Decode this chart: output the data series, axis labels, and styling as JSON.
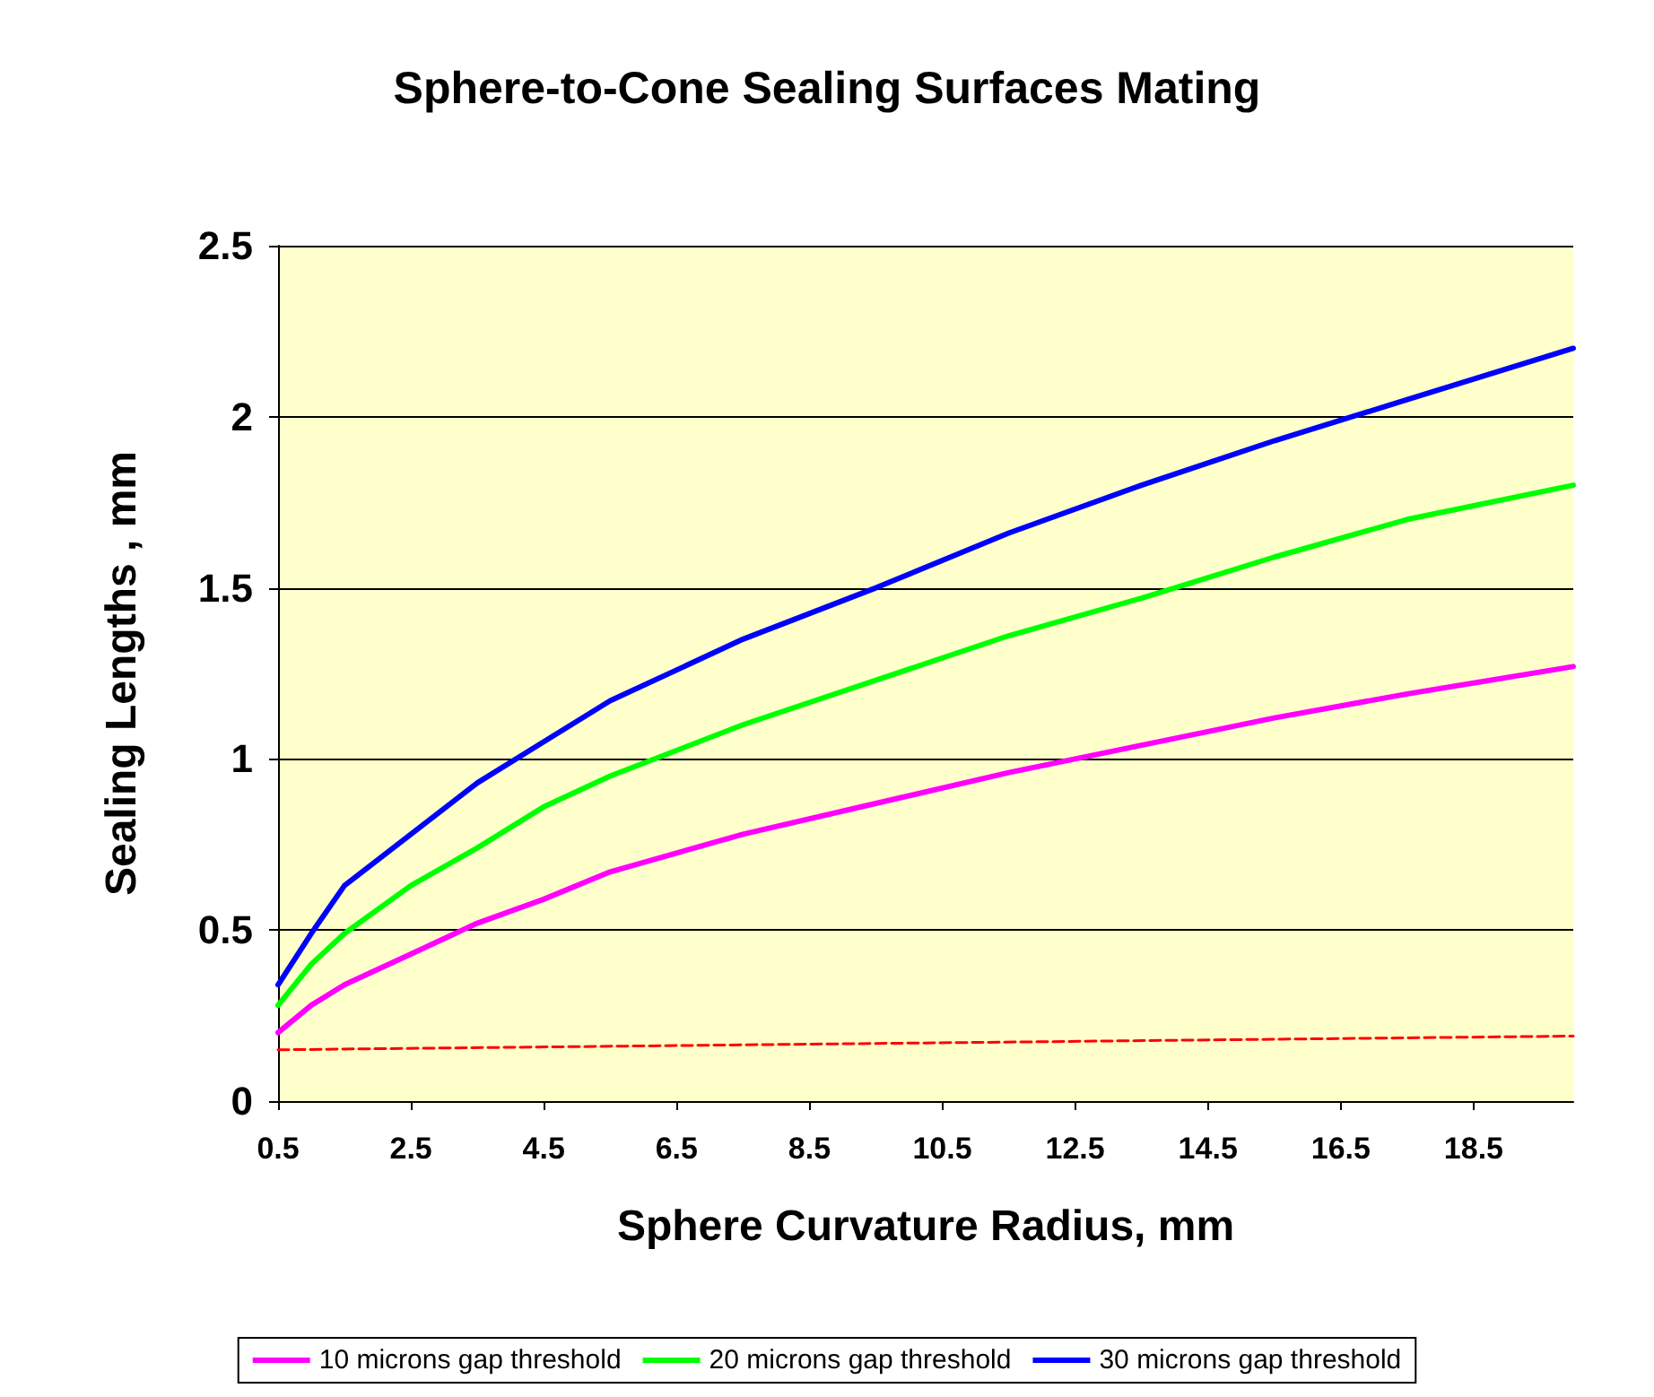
{
  "chart_data": {
    "type": "line",
    "title": "Sphere-to-Cone Sealing Surfaces Mating",
    "xlabel": "Sphere Curvature Radius, mm",
    "ylabel": "Sealing Lengths , mm",
    "x": [
      0.5,
      1,
      1.5,
      2.5,
      3.5,
      4.5,
      5.5,
      7.5,
      9.5,
      11.5,
      13.5,
      15.5,
      17.5,
      20
    ],
    "series": [
      {
        "name": "10 microns gap threshold",
        "color": "#ff00ff",
        "values": [
          0.2,
          0.28,
          0.34,
          0.43,
          0.52,
          0.59,
          0.67,
          0.78,
          0.87,
          0.96,
          1.04,
          1.12,
          1.19,
          1.27
        ]
      },
      {
        "name": "20 microns gap threshold",
        "color": "#00ff00",
        "values": [
          0.28,
          0.4,
          0.49,
          0.63,
          0.74,
          0.86,
          0.95,
          1.1,
          1.23,
          1.36,
          1.47,
          1.59,
          1.7,
          1.8
        ]
      },
      {
        "name": "30 microns gap threshold",
        "color": "#0000ff",
        "values": [
          0.34,
          0.49,
          0.63,
          0.78,
          0.93,
          1.05,
          1.17,
          1.35,
          1.5,
          1.66,
          1.8,
          1.93,
          2.05,
          2.2
        ]
      },
      {
        "type": "line",
        "color": "#ff0000",
        "line_style": "dashed",
        "x": [
          0.5,
          20
        ],
        "values": [
          0.15,
          0.19
        ]
      }
    ],
    "xlim": [
      0.5,
      20
    ],
    "xticks": [
      0.5,
      2.5,
      4.5,
      6.5,
      8.5,
      10.5,
      12.5,
      14.5,
      16.5,
      18.5
    ],
    "ylim": [
      0,
      2.5
    ],
    "yticks": [
      0,
      0.5,
      1,
      1.5,
      2,
      2.5
    ],
    "grid": "y",
    "legend": "bottom",
    "marker": "none",
    "line_style": "solid"
  }
}
